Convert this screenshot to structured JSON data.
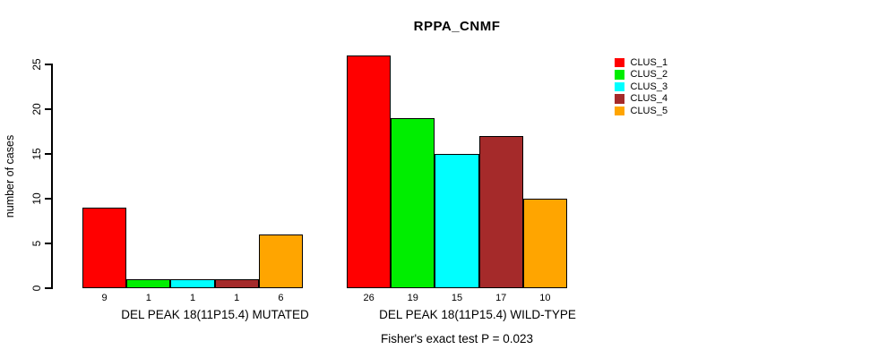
{
  "chart_data": {
    "type": "bar",
    "title": "RPPA_CNMF",
    "ylabel": "number of cases",
    "xlabel": "",
    "ylim": [
      0,
      25
    ],
    "yticks": [
      0,
      5,
      10,
      15,
      20,
      25
    ],
    "grid": false,
    "legend": [
      "CLUS_1",
      "CLUS_2",
      "CLUS_3",
      "CLUS_4",
      "CLUS_5"
    ],
    "legend_position": "top-right",
    "series_colors": [
      "#FF0000",
      "#00EE00",
      "#00FFFF",
      "#A52A2A",
      "#FFA500"
    ],
    "bar_border_color": "#000000",
    "groups": [
      {
        "label": "DEL PEAK 18(11P15.4) MUTATED",
        "values": [
          9,
          1,
          1,
          1,
          6
        ]
      },
      {
        "label": "DEL PEAK 18(11P15.4) WILD-TYPE",
        "values": [
          26,
          19,
          15,
          17,
          10
        ]
      }
    ],
    "annotation": "Fisher's exact test P = 0.023"
  }
}
